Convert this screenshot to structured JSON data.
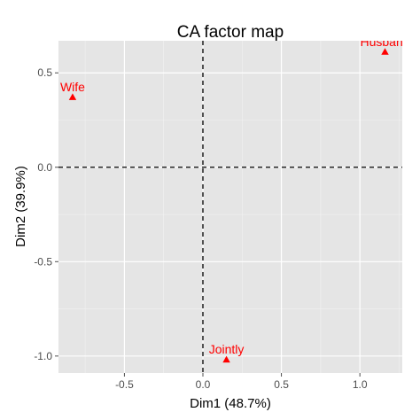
{
  "chart_data": {
    "type": "scatter",
    "title": "CA factor map",
    "xlabel": "Dim1 (48.7%)",
    "ylabel": "Dim2 (39.9%)",
    "xlim": [
      -0.92,
      1.27
    ],
    "ylim": [
      -1.09,
      0.67
    ],
    "x_ticks": [
      -0.5,
      0.0,
      0.5,
      1.0
    ],
    "x_tick_labels": [
      "-0.5",
      "0.0",
      "0.5",
      "1.0"
    ],
    "y_ticks": [
      -1.0,
      -0.5,
      0.0,
      0.5
    ],
    "y_tick_labels": [
      "-1.0",
      "-0.5",
      "0.0",
      "0.5"
    ],
    "grid": true,
    "reference_lines": {
      "x": 0,
      "y": 0,
      "style": "dashed"
    },
    "marker": "triangle",
    "colors": {
      "points": "#ff0000",
      "panel": "#e5e5e5",
      "grid": "#ffffff",
      "reference": "#000000"
    },
    "points": [
      {
        "label": "Wife",
        "x": -0.83,
        "y": 0.37
      },
      {
        "label": "Husband",
        "x": 1.16,
        "y": 0.61
      },
      {
        "label": "Jointly",
        "x": 0.15,
        "y": -1.02
      }
    ]
  }
}
